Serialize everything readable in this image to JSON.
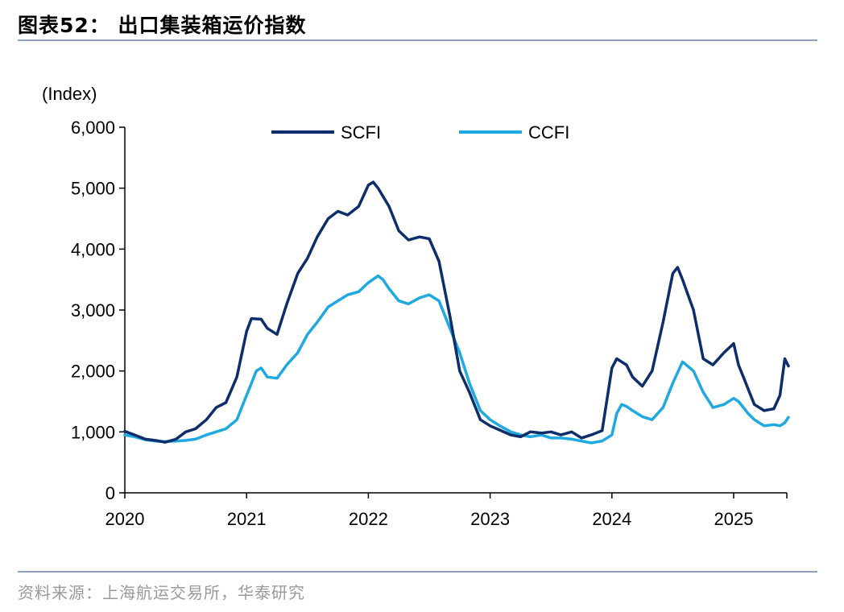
{
  "header": {
    "title": "图表52：  出口集装箱运价指数"
  },
  "footer": {
    "source": "资料来源：上海航运交易所，华泰研究"
  },
  "chart_data": {
    "type": "line",
    "ylabel": "(Index)",
    "ylim": [
      0,
      6000
    ],
    "yticks": [
      0,
      1000,
      2000,
      3000,
      4000,
      5000,
      6000
    ],
    "ytick_labels": [
      "0",
      "1,000",
      "2,000",
      "3,000",
      "4,000",
      "5,000",
      "6,000"
    ],
    "xlim": [
      2020.0,
      2025.45
    ],
    "xticks": [
      2020,
      2021,
      2022,
      2023,
      2024,
      2025
    ],
    "xtick_labels": [
      "2020",
      "2021",
      "2022",
      "2023",
      "2024",
      "2025"
    ],
    "grid": false,
    "legend_position": "top-center",
    "series": [
      {
        "name": "SCFI",
        "color": "#0d2d6b",
        "points": [
          [
            2020.0,
            1010
          ],
          [
            2020.08,
            950
          ],
          [
            2020.17,
            880
          ],
          [
            2020.25,
            860
          ],
          [
            2020.33,
            830
          ],
          [
            2020.42,
            880
          ],
          [
            2020.5,
            1000
          ],
          [
            2020.58,
            1050
          ],
          [
            2020.67,
            1200
          ],
          [
            2020.75,
            1400
          ],
          [
            2020.83,
            1480
          ],
          [
            2020.92,
            1900
          ],
          [
            2021.0,
            2650
          ],
          [
            2021.04,
            2860
          ],
          [
            2021.12,
            2850
          ],
          [
            2021.17,
            2700
          ],
          [
            2021.25,
            2600
          ],
          [
            2021.33,
            3100
          ],
          [
            2021.42,
            3600
          ],
          [
            2021.5,
            3850
          ],
          [
            2021.58,
            4200
          ],
          [
            2021.67,
            4500
          ],
          [
            2021.75,
            4620
          ],
          [
            2021.83,
            4560
          ],
          [
            2021.92,
            4700
          ],
          [
            2022.0,
            5050
          ],
          [
            2022.04,
            5100
          ],
          [
            2022.08,
            5000
          ],
          [
            2022.17,
            4700
          ],
          [
            2022.25,
            4300
          ],
          [
            2022.33,
            4150
          ],
          [
            2022.42,
            4200
          ],
          [
            2022.5,
            4170
          ],
          [
            2022.58,
            3800
          ],
          [
            2022.67,
            2900
          ],
          [
            2022.75,
            2000
          ],
          [
            2022.83,
            1650
          ],
          [
            2022.92,
            1200
          ],
          [
            2023.0,
            1100
          ],
          [
            2023.08,
            1030
          ],
          [
            2023.17,
            950
          ],
          [
            2023.25,
            920
          ],
          [
            2023.33,
            1000
          ],
          [
            2023.42,
            980
          ],
          [
            2023.5,
            1000
          ],
          [
            2023.58,
            950
          ],
          [
            2023.67,
            1000
          ],
          [
            2023.75,
            900
          ],
          [
            2023.83,
            950
          ],
          [
            2023.92,
            1020
          ],
          [
            2024.0,
            2050
          ],
          [
            2024.04,
            2200
          ],
          [
            2024.12,
            2100
          ],
          [
            2024.17,
            1900
          ],
          [
            2024.25,
            1750
          ],
          [
            2024.33,
            2000
          ],
          [
            2024.42,
            2800
          ],
          [
            2024.5,
            3600
          ],
          [
            2024.54,
            3700
          ],
          [
            2024.58,
            3500
          ],
          [
            2024.67,
            3000
          ],
          [
            2024.75,
            2200
          ],
          [
            2024.83,
            2100
          ],
          [
            2024.92,
            2300
          ],
          [
            2025.0,
            2450
          ],
          [
            2025.04,
            2100
          ],
          [
            2025.08,
            1900
          ],
          [
            2025.12,
            1700
          ],
          [
            2025.17,
            1450
          ],
          [
            2025.25,
            1350
          ],
          [
            2025.33,
            1380
          ],
          [
            2025.38,
            1600
          ],
          [
            2025.42,
            2200
          ],
          [
            2025.45,
            2080
          ]
        ]
      },
      {
        "name": "CCFI",
        "color": "#1fa9e1",
        "points": [
          [
            2020.0,
            950
          ],
          [
            2020.08,
            920
          ],
          [
            2020.17,
            870
          ],
          [
            2020.25,
            850
          ],
          [
            2020.33,
            840
          ],
          [
            2020.42,
            850
          ],
          [
            2020.5,
            860
          ],
          [
            2020.58,
            880
          ],
          [
            2020.67,
            950
          ],
          [
            2020.75,
            1000
          ],
          [
            2020.83,
            1050
          ],
          [
            2020.92,
            1200
          ],
          [
            2021.0,
            1600
          ],
          [
            2021.08,
            2000
          ],
          [
            2021.12,
            2050
          ],
          [
            2021.17,
            1900
          ],
          [
            2021.25,
            1880
          ],
          [
            2021.33,
            2100
          ],
          [
            2021.42,
            2300
          ],
          [
            2021.5,
            2600
          ],
          [
            2021.58,
            2800
          ],
          [
            2021.67,
            3050
          ],
          [
            2021.75,
            3150
          ],
          [
            2021.83,
            3250
          ],
          [
            2021.92,
            3300
          ],
          [
            2022.0,
            3450
          ],
          [
            2022.08,
            3560
          ],
          [
            2022.12,
            3500
          ],
          [
            2022.17,
            3350
          ],
          [
            2022.25,
            3150
          ],
          [
            2022.33,
            3100
          ],
          [
            2022.42,
            3200
          ],
          [
            2022.5,
            3250
          ],
          [
            2022.58,
            3150
          ],
          [
            2022.67,
            2700
          ],
          [
            2022.75,
            2300
          ],
          [
            2022.83,
            1800
          ],
          [
            2022.92,
            1350
          ],
          [
            2023.0,
            1200
          ],
          [
            2023.08,
            1100
          ],
          [
            2023.17,
            1000
          ],
          [
            2023.25,
            950
          ],
          [
            2023.33,
            920
          ],
          [
            2023.42,
            950
          ],
          [
            2023.5,
            900
          ],
          [
            2023.58,
            900
          ],
          [
            2023.67,
            880
          ],
          [
            2023.75,
            850
          ],
          [
            2023.83,
            820
          ],
          [
            2023.92,
            850
          ],
          [
            2024.0,
            950
          ],
          [
            2024.04,
            1300
          ],
          [
            2024.08,
            1450
          ],
          [
            2024.12,
            1420
          ],
          [
            2024.17,
            1350
          ],
          [
            2024.25,
            1250
          ],
          [
            2024.33,
            1200
          ],
          [
            2024.42,
            1400
          ],
          [
            2024.5,
            1800
          ],
          [
            2024.58,
            2150
          ],
          [
            2024.67,
            2000
          ],
          [
            2024.75,
            1650
          ],
          [
            2024.83,
            1400
          ],
          [
            2024.92,
            1450
          ],
          [
            2025.0,
            1550
          ],
          [
            2025.04,
            1500
          ],
          [
            2025.12,
            1300
          ],
          [
            2025.17,
            1200
          ],
          [
            2025.25,
            1100
          ],
          [
            2025.33,
            1120
          ],
          [
            2025.38,
            1100
          ],
          [
            2025.42,
            1150
          ],
          [
            2025.45,
            1240
          ]
        ]
      }
    ]
  }
}
